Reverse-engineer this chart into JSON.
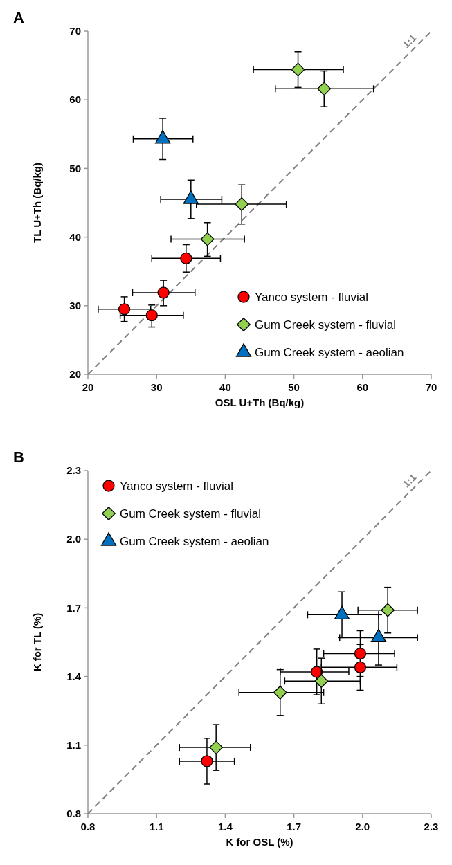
{
  "chart_data": [
    {
      "type": "scatter",
      "title": "A",
      "xlabel": "OSL U+Th (Bq/kg)",
      "ylabel": "TL U+Th (Bq/kg)",
      "xlim": [
        20,
        70
      ],
      "ylim": [
        20,
        70
      ],
      "xticks": [
        20,
        30,
        40,
        50,
        60,
        70
      ],
      "yticks": [
        20,
        30,
        40,
        50,
        60,
        70
      ],
      "grid": false,
      "legend": "bottom right",
      "annotations": [
        "1:1"
      ],
      "series": [
        {
          "type": "line",
          "color": "#808080",
          "line_style": "dashed",
          "marker": "none",
          "x": [
            20,
            70
          ],
          "values": [
            20,
            70
          ]
        },
        {
          "name": "Yanco system - fluvial",
          "color": "#ff0000",
          "marker": "circle",
          "x": [
            25.3,
            29.3,
            31.0,
            34.3
          ],
          "values": [
            29.5,
            28.6,
            31.9,
            36.9
          ],
          "errors": [
            [
              27.7,
              31.3
            ],
            [
              26.9,
              30.1
            ],
            [
              30.0,
              33.7
            ],
            [
              34.9,
              38.9
            ]
          ],
          "xerrors": [
            [
              21.5,
              29.1
            ],
            [
              24.7,
              33.9
            ],
            [
              26.5,
              35.6
            ],
            [
              29.3,
              39.3
            ]
          ]
        },
        {
          "name": "Gum Creek system - fluvial",
          "color": "#92d050",
          "marker": "diamond",
          "x": [
            37.4,
            42.4,
            50.6,
            54.4
          ],
          "values": [
            39.7,
            44.8,
            64.4,
            61.6
          ],
          "errors": [
            [
              37.2,
              42.1
            ],
            [
              41.9,
              47.6
            ],
            [
              61.8,
              67.0
            ],
            [
              59.0,
              64.2
            ]
          ],
          "xerrors": [
            [
              32.1,
              42.8
            ],
            [
              35.8,
              48.9
            ],
            [
              44.1,
              57.2
            ],
            [
              47.3,
              61.6
            ]
          ]
        },
        {
          "name": "Gum Creek system - aeolian",
          "color": "#0070c0",
          "marker": "triangle",
          "x": [
            30.9,
            35.0
          ],
          "values": [
            54.3,
            45.5
          ],
          "errors": [
            [
              51.3,
              57.3
            ],
            [
              42.7,
              48.3
            ]
          ],
          "xerrors": [
            [
              26.6,
              35.3
            ],
            [
              30.6,
              39.5
            ]
          ]
        }
      ]
    },
    {
      "type": "scatter",
      "title": "B",
      "xlabel": "K for OSL (%)",
      "ylabel": "K for  TL (%)",
      "xlim": [
        0.8,
        2.3
      ],
      "ylim": [
        0.8,
        2.3
      ],
      "xticks": [
        {
          "value": 0.8,
          "label": "0.8"
        },
        {
          "value": 1.1,
          "label": "1.1"
        },
        {
          "value": 1.4,
          "label": "1.4"
        },
        {
          "value": 1.7,
          "label": "1.7"
        },
        {
          "value": 2.0,
          "label": "2.0"
        },
        {
          "value": 2.3,
          "label": "2.3"
        }
      ],
      "yticks": [
        {
          "value": 0.8,
          "label": "0.8"
        },
        {
          "value": 1.1,
          "label": "1.1"
        },
        {
          "value": 1.4,
          "label": "1.4"
        },
        {
          "value": 1.7,
          "label": "1.7"
        },
        {
          "value": 2.0,
          "label": "2.0"
        },
        {
          "value": 2.3,
          "label": "2.3"
        }
      ],
      "grid": false,
      "legend": "top left",
      "annotations": [
        "1:1"
      ],
      "series": [
        {
          "type": "line",
          "color": "#808080",
          "line_style": "dashed",
          "marker": "none",
          "x": [
            0.8,
            2.3
          ],
          "values": [
            0.8,
            2.3
          ]
        },
        {
          "name": "Yanco system - fluvial",
          "color": "#ff0000",
          "marker": "circle",
          "x": [
            1.32,
            1.8,
            1.99,
            1.99
          ],
          "values": [
            1.03,
            1.42,
            1.44,
            1.5
          ],
          "errors": [
            [
              0.93,
              1.13
            ],
            [
              1.32,
              1.52
            ],
            [
              1.34,
              1.54
            ],
            [
              1.4,
              1.6
            ]
          ],
          "xerrors": [
            [
              1.2,
              1.44
            ],
            [
              1.64,
              1.94
            ],
            [
              1.82,
              2.15
            ],
            [
              1.83,
              2.14
            ]
          ]
        },
        {
          "name": "Gum Creek system - fluvial",
          "color": "#92d050",
          "marker": "diamond",
          "x": [
            1.36,
            1.64,
            1.82,
            2.11
          ],
          "values": [
            1.09,
            1.33,
            1.38,
            1.69
          ],
          "errors": [
            [
              0.99,
              1.19
            ],
            [
              1.23,
              1.43
            ],
            [
              1.28,
              1.48
            ],
            [
              1.59,
              1.79
            ]
          ],
          "xerrors": [
            [
              1.2,
              1.51
            ],
            [
              1.46,
              1.83
            ],
            [
              1.66,
              1.99
            ],
            [
              1.98,
              2.24
            ]
          ]
        },
        {
          "name": "Gum Creek system - aeolian",
          "color": "#0070c0",
          "marker": "triangle",
          "x": [
            1.91,
            2.07
          ],
          "values": [
            1.67,
            1.57
          ],
          "errors": [
            [
              1.57,
              1.77
            ],
            [
              1.45,
              1.67
            ]
          ],
          "xerrors": [
            [
              1.76,
              2.07
            ],
            [
              1.9,
              2.24
            ]
          ]
        }
      ]
    }
  ]
}
